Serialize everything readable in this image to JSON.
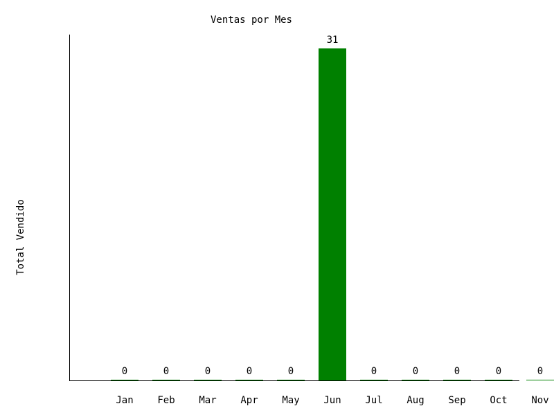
{
  "chart_data": {
    "type": "bar",
    "title": "Ventas por Mes",
    "xlabel": "",
    "ylabel": "Total Vendido",
    "categories": [
      "Jan",
      "Feb",
      "Mar",
      "Apr",
      "May",
      "Jun",
      "Jul",
      "Aug",
      "Sep",
      "Oct",
      "Nov"
    ],
    "values": [
      0,
      0,
      0,
      0,
      0,
      31,
      0,
      0,
      0,
      0,
      0
    ],
    "ylim": [
      0,
      31
    ],
    "grid": false,
    "bar_color": "#008000"
  }
}
